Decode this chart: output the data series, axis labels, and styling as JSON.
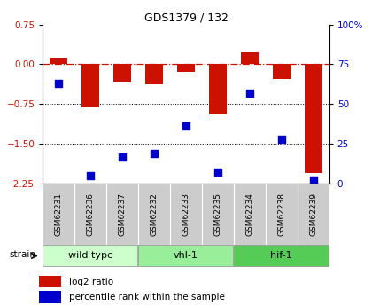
{
  "title": "GDS1379 / 132",
  "samples": [
    "GSM62231",
    "GSM62236",
    "GSM62237",
    "GSM62232",
    "GSM62233",
    "GSM62235",
    "GSM62234",
    "GSM62238",
    "GSM62239"
  ],
  "log2_ratio": [
    0.12,
    -0.82,
    -0.35,
    -0.38,
    -0.15,
    -0.95,
    0.22,
    -0.28,
    -2.05
  ],
  "percentile_rank": [
    63,
    5,
    17,
    19,
    36,
    7,
    57,
    28,
    2
  ],
  "ylim_left": [
    -2.25,
    0.75
  ],
  "ylim_right": [
    0,
    100
  ],
  "yticks_left": [
    0.75,
    0,
    -0.75,
    -1.5,
    -2.25
  ],
  "yticks_right": [
    100,
    75,
    50,
    25,
    0
  ],
  "hline_zero": 0,
  "hline_dotted": [
    -0.75,
    -1.5
  ],
  "groups": [
    {
      "label": "wild type",
      "start": 0,
      "end": 3,
      "color": "#ccffcc"
    },
    {
      "label": "vhl-1",
      "start": 3,
      "end": 6,
      "color": "#99ee99"
    },
    {
      "label": "hif-1",
      "start": 6,
      "end": 9,
      "color": "#55cc55"
    }
  ],
  "bar_color": "#cc1100",
  "dot_color": "#0000cc",
  "bar_width": 0.55,
  "dot_size": 30,
  "strain_label": "strain",
  "legend_items": [
    {
      "label": "log2 ratio",
      "color": "#cc1100"
    },
    {
      "label": "percentile rank within the sample",
      "color": "#0000cc"
    }
  ]
}
